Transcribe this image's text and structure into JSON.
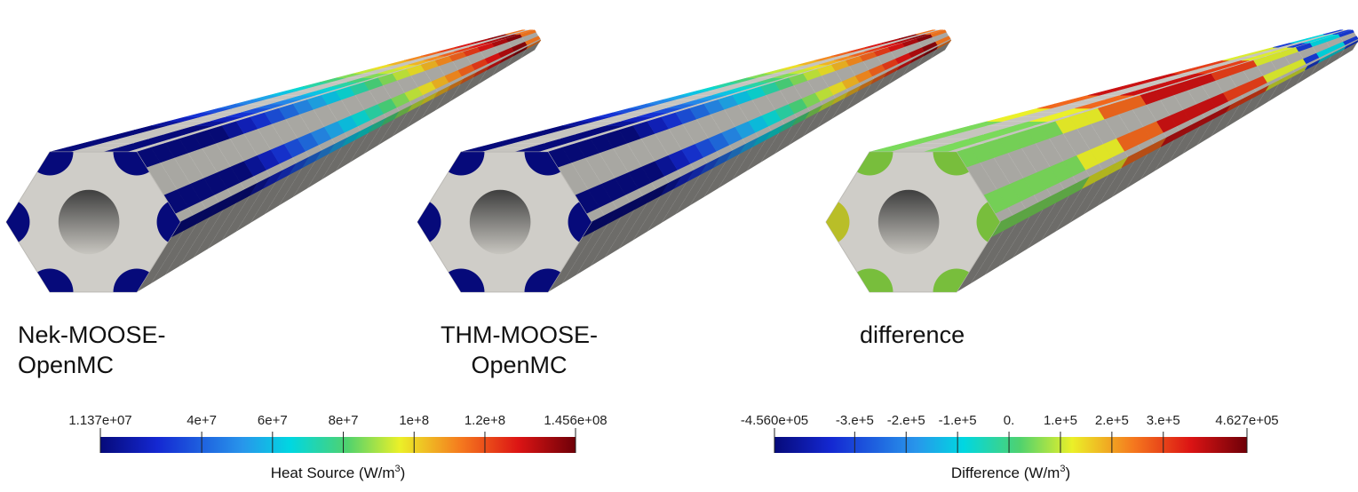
{
  "panels": [
    {
      "label": "Nek-MOOSE-\nOpenMC",
      "colormap": "heat"
    },
    {
      "label": "THM-MOOSE-\nOpenMC",
      "colormap": "heat"
    },
    {
      "label": "difference",
      "colormap": "diff"
    }
  ],
  "colorbars": [
    {
      "title": "Heat Source (W/m",
      "title_sup": "3",
      "title_close": ")",
      "min_label": "1.137e+07",
      "max_label": "1.456e+08",
      "range": [
        11370000,
        145600000
      ],
      "ticks": [
        {
          "value": 40000000,
          "label": "4e+7"
        },
        {
          "value": 60000000,
          "label": "6e+7"
        },
        {
          "value": 80000000,
          "label": "8e+7"
        },
        {
          "value": 100000000,
          "label": "1e+8"
        },
        {
          "value": 120000000,
          "label": "1.2e+8"
        }
      ]
    },
    {
      "title": "Difference (W/m",
      "title_sup": "3",
      "title_close": ")",
      "min_label": "-4.560e+05",
      "max_label": "4.627e+05",
      "range": [
        -456000,
        462700
      ],
      "ticks": [
        {
          "value": -300000,
          "label": "-3.e+5"
        },
        {
          "value": -200000,
          "label": "-2.e+5"
        },
        {
          "value": -100000,
          "label": "-1.e+5"
        },
        {
          "value": 0,
          "label": "0."
        },
        {
          "value": 100000,
          "label": "1.e+5"
        },
        {
          "value": 200000,
          "label": "2.e+5"
        },
        {
          "value": 300000,
          "label": "3.e+5"
        }
      ]
    }
  ],
  "colors": {
    "rod_gray": "#c6c4bf",
    "rod_face": "#cfcdc8",
    "rod_dark": "#5f5f5f",
    "hole_dark": "#3e3e3e",
    "hole_light": "#c8c6c0",
    "navy": "#060a7a"
  }
}
